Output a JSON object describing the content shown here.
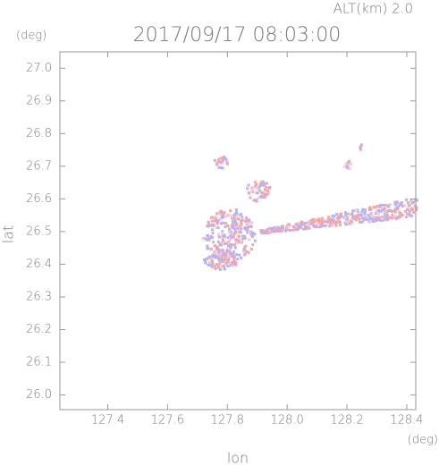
{
  "chart_data": {
    "type": "radar-map",
    "title": "2017/09/17 08:03:00",
    "altitude_label": "ALT(km) 2.0",
    "y_unit": "(deg)",
    "x_unit": "(deg)",
    "ylabel": "lat",
    "xlabel": "lon",
    "xlim": [
      127.24,
      128.43
    ],
    "ylim": [
      25.955,
      27.05
    ],
    "xticks": [
      127.4,
      127.6,
      127.8,
      {
        "value": 128.0,
        "label": "128.0"
      },
      128.2,
      128.4
    ],
    "yticks": [
      {
        "value": 26.0,
        "label": "26.0"
      },
      26.1,
      26.2,
      26.3,
      26.4,
      26.5,
      26.6,
      26.7,
      26.8,
      26.9,
      {
        "value": 27.0,
        "label": "27.0"
      }
    ]
  }
}
